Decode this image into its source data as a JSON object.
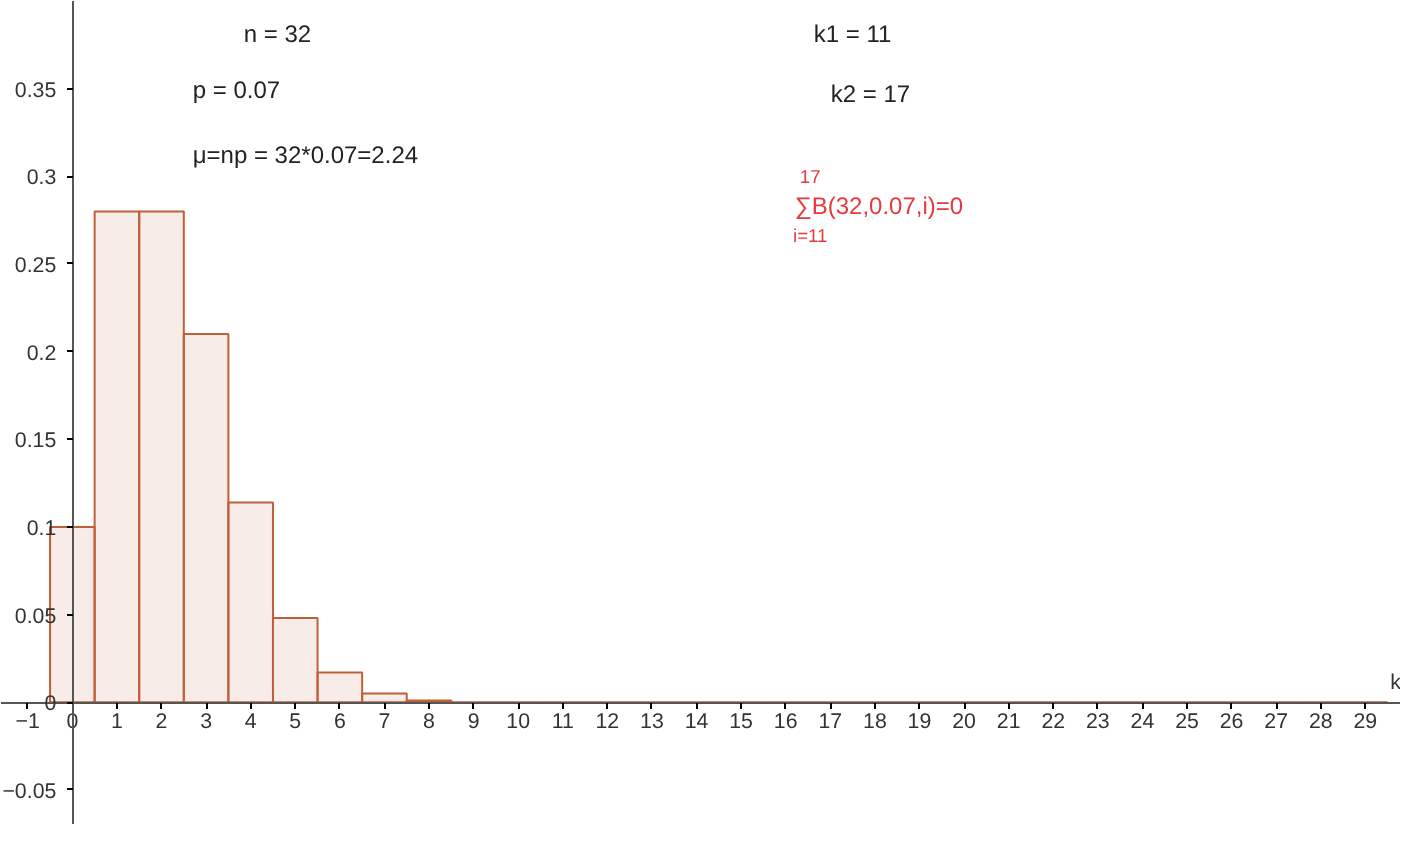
{
  "chart_data": {
    "type": "histogram",
    "xlabel": "k",
    "bins": [
      -0.5,
      0.5,
      1.5,
      2.5,
      3.5,
      4.5,
      5.5,
      6.5,
      7.5,
      8.5,
      9.5,
      10.5,
      11.5,
      12.5,
      13.5,
      14.5,
      15.5,
      16.5,
      17.5,
      18.5,
      19.5,
      20.5,
      21.5,
      22.5,
      23.5,
      24.5,
      25.5,
      26.5,
      27.5,
      28.5,
      29.5
    ],
    "values": [
      0.1,
      0.28,
      0.28,
      0.21,
      0.114,
      0.048,
      0.017,
      0.005,
      0.001,
      0,
      0,
      0,
      0,
      0,
      0,
      0,
      0,
      0,
      0,
      0,
      0,
      0,
      0,
      0,
      0,
      0,
      0,
      0,
      0,
      0
    ],
    "color": "#c0603a",
    "xlim": [
      -1.6,
      29.8
    ],
    "ylim": [
      -0.07,
      0.4
    ],
    "xticks": [
      -1,
      0,
      1,
      2,
      3,
      4,
      5,
      6,
      7,
      8,
      9,
      10,
      11,
      12,
      13,
      14,
      15,
      16,
      17,
      18,
      19,
      20,
      21,
      22,
      23,
      24,
      25,
      26,
      27,
      28,
      29
    ],
    "yticks": [
      -0.05,
      0,
      0.05,
      0.1,
      0.15,
      0.2,
      0.25,
      0.3,
      0.35
    ],
    "annotations": [
      "n = 32",
      "p = 0.07",
      "μ=np = 32*0.07=2.24",
      "k1 = 11",
      "k2 = 17",
      "17",
      "∑B(32,0.07,i)=0",
      "i=11"
    ]
  }
}
